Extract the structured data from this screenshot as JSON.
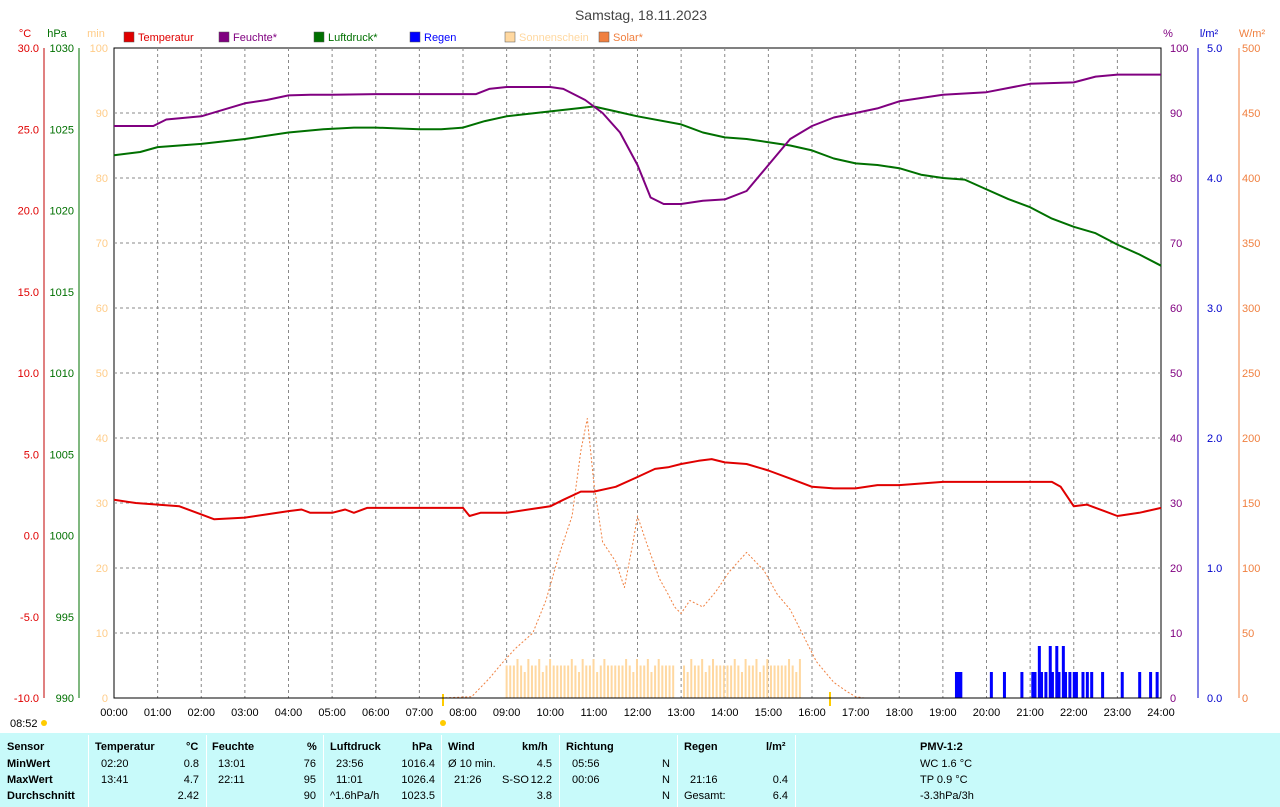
{
  "title": "Samstag, 18.11.2023",
  "axes": {
    "temp": {
      "unit": "°C",
      "color": "#e00000",
      "ticks": [
        "30.0",
        "25.0",
        "20.0",
        "15.0",
        "10.0",
        "5.0",
        "0.0",
        "-5.0",
        "-10.0"
      ],
      "range": [
        -10,
        30
      ]
    },
    "pressure": {
      "unit": "hPa",
      "color": "#007000",
      "ticks": [
        "1030",
        "1025",
        "1020",
        "1015",
        "1010",
        "1005",
        "1000",
        "995",
        "990"
      ],
      "range": [
        990,
        1030
      ]
    },
    "sun_minutes": {
      "unit": "min",
      "color": "#ffd8a0",
      "ticks": [
        "100",
        "90",
        "80",
        "70",
        "60",
        "50",
        "40",
        "30",
        "20",
        "10",
        "0"
      ],
      "range": [
        0,
        100
      ]
    },
    "humidity": {
      "unit": "%",
      "color": "#800080",
      "ticks": [
        "100",
        "90",
        "80",
        "70",
        "60",
        "50",
        "40",
        "30",
        "20",
        "10",
        "0"
      ],
      "range": [
        0,
        100
      ]
    },
    "rain": {
      "unit": "l/m²",
      "color": "#0000cc",
      "ticks": [
        "5.0",
        "4.0",
        "3.0",
        "2.0",
        "1.0",
        "0.0"
      ],
      "range": [
        0,
        5
      ]
    },
    "solar": {
      "unit": "W/m²",
      "color": "#f08040",
      "ticks": [
        "500",
        "450",
        "400",
        "350",
        "300",
        "250",
        "200",
        "150",
        "100",
        "50",
        "0"
      ],
      "range": [
        0,
        500
      ]
    }
  },
  "legend": [
    {
      "label": "Temperatur",
      "color": "#e00000"
    },
    {
      "label": "Feuchte*",
      "color": "#800080"
    },
    {
      "label": "Luftdruck*",
      "color": "#007000"
    },
    {
      "label": "Regen",
      "color": "#0000ff"
    },
    {
      "label": "Sonnenschein",
      "color": "#ffd8a0"
    },
    {
      "label": "Solar*",
      "color": "#f08040"
    }
  ],
  "x_ticks": [
    "00:00",
    "01:00",
    "02:00",
    "03:00",
    "04:00",
    "05:00",
    "06:00",
    "07:00",
    "08:00",
    "09:00",
    "10:00",
    "11:00",
    "12:00",
    "13:00",
    "14:00",
    "15:00",
    "16:00",
    "17:00",
    "18:00",
    "19:00",
    "20:00",
    "21:00",
    "22:00",
    "23:00",
    "24:00"
  ],
  "sunrise": "08:52",
  "chart_data": {
    "type": "line",
    "title": "Samstag, 18.11.2023",
    "x_unit": "hours",
    "xlim": [
      0,
      24
    ],
    "series": [
      {
        "name": "Temperatur",
        "unit": "°C",
        "axis": "temp",
        "points": [
          [
            0,
            2.2
          ],
          [
            0.5,
            2.0
          ],
          [
            1.0,
            1.9
          ],
          [
            1.5,
            1.8
          ],
          [
            2.0,
            1.3
          ],
          [
            2.3,
            1.0
          ],
          [
            3.0,
            1.1
          ],
          [
            3.5,
            1.3
          ],
          [
            4.0,
            1.5
          ],
          [
            4.3,
            1.6
          ],
          [
            4.5,
            1.4
          ],
          [
            5.0,
            1.4
          ],
          [
            5.3,
            1.6
          ],
          [
            5.5,
            1.4
          ],
          [
            5.8,
            1.7
          ],
          [
            7.0,
            1.7
          ],
          [
            8.0,
            1.7
          ],
          [
            8.15,
            1.2
          ],
          [
            8.4,
            1.4
          ],
          [
            9.0,
            1.4
          ],
          [
            9.5,
            1.6
          ],
          [
            10.0,
            1.8
          ],
          [
            10.3,
            2.2
          ],
          [
            10.7,
            2.7
          ],
          [
            11.0,
            2.7
          ],
          [
            11.5,
            3.0
          ],
          [
            12.0,
            3.6
          ],
          [
            12.4,
            4.1
          ],
          [
            12.7,
            4.2
          ],
          [
            13.0,
            4.4
          ],
          [
            13.4,
            4.6
          ],
          [
            13.7,
            4.7
          ],
          [
            14.0,
            4.5
          ],
          [
            14.5,
            4.4
          ],
          [
            15.0,
            4.0
          ],
          [
            15.5,
            3.5
          ],
          [
            16.0,
            3.0
          ],
          [
            16.5,
            2.9
          ],
          [
            17.0,
            2.9
          ],
          [
            17.5,
            3.1
          ],
          [
            18.0,
            3.1
          ],
          [
            19.0,
            3.3
          ],
          [
            20.0,
            3.3
          ],
          [
            21.5,
            3.3
          ],
          [
            21.7,
            3.0
          ],
          [
            22.0,
            1.8
          ],
          [
            22.3,
            1.9
          ],
          [
            22.7,
            1.5
          ],
          [
            23.0,
            1.2
          ],
          [
            23.5,
            1.4
          ],
          [
            24.0,
            1.7
          ]
        ]
      },
      {
        "name": "Feuchte*",
        "unit": "%",
        "axis": "humidity",
        "points": [
          [
            0,
            88
          ],
          [
            0.9,
            88
          ],
          [
            1.2,
            89
          ],
          [
            2.0,
            89.5
          ],
          [
            2.5,
            90.5
          ],
          [
            3.0,
            91.5
          ],
          [
            3.5,
            92
          ],
          [
            4.0,
            92.7
          ],
          [
            4.5,
            92.8
          ],
          [
            5.0,
            92.8
          ],
          [
            6.0,
            92.9
          ],
          [
            7.0,
            92.9
          ],
          [
            8.3,
            92.9
          ],
          [
            8.6,
            93.7
          ],
          [
            9.0,
            94
          ],
          [
            10.0,
            94
          ],
          [
            10.3,
            93.7
          ],
          [
            10.8,
            92
          ],
          [
            11.2,
            90
          ],
          [
            11.6,
            87
          ],
          [
            12.0,
            82
          ],
          [
            12.3,
            77
          ],
          [
            12.6,
            76
          ],
          [
            13.0,
            76
          ],
          [
            13.5,
            76.5
          ],
          [
            14.0,
            76.7
          ],
          [
            14.5,
            78
          ],
          [
            15.0,
            82
          ],
          [
            15.5,
            86
          ],
          [
            16.0,
            88
          ],
          [
            16.5,
            89.3
          ],
          [
            17.0,
            90
          ],
          [
            17.5,
            90.7
          ],
          [
            18.0,
            91.8
          ],
          [
            19.0,
            92.8
          ],
          [
            20.0,
            93.2
          ],
          [
            21.0,
            94.5
          ],
          [
            22.0,
            94.7
          ],
          [
            22.5,
            95.6
          ],
          [
            23.0,
            95.9
          ],
          [
            24.0,
            95.9
          ]
        ]
      },
      {
        "name": "Luftdruck*",
        "unit": "hPa",
        "axis": "pressure",
        "points": [
          [
            0,
            1023.4
          ],
          [
            0.6,
            1023.6
          ],
          [
            1.0,
            1023.9
          ],
          [
            2.0,
            1024.1
          ],
          [
            3.0,
            1024.4
          ],
          [
            4.0,
            1024.8
          ],
          [
            4.8,
            1025.0
          ],
          [
            5.5,
            1025.1
          ],
          [
            6.0,
            1025.1
          ],
          [
            7.0,
            1025.0
          ],
          [
            7.5,
            1025.0
          ],
          [
            8.0,
            1025.1
          ],
          [
            8.5,
            1025.5
          ],
          [
            9.0,
            1025.8
          ],
          [
            10.0,
            1026.1
          ],
          [
            11.0,
            1026.4
          ],
          [
            11.5,
            1026.1
          ],
          [
            12.0,
            1025.8
          ],
          [
            13.0,
            1025.3
          ],
          [
            13.5,
            1024.8
          ],
          [
            14.0,
            1024.5
          ],
          [
            14.5,
            1024.4
          ],
          [
            15.0,
            1024.2
          ],
          [
            15.5,
            1024.0
          ],
          [
            16.0,
            1023.7
          ],
          [
            16.5,
            1023.2
          ],
          [
            17.0,
            1022.9
          ],
          [
            17.5,
            1022.8
          ],
          [
            18.0,
            1022.6
          ],
          [
            18.5,
            1022.2
          ],
          [
            19.0,
            1022.0
          ],
          [
            19.5,
            1021.9
          ],
          [
            20.0,
            1021.3
          ],
          [
            20.5,
            1020.7
          ],
          [
            21.0,
            1020.2
          ],
          [
            21.5,
            1019.5
          ],
          [
            22.0,
            1019.0
          ],
          [
            22.5,
            1018.6
          ],
          [
            23.0,
            1017.9
          ],
          [
            23.5,
            1017.3
          ],
          [
            24.0,
            1016.6
          ]
        ]
      },
      {
        "name": "Solar*",
        "unit": "W/m²",
        "axis": "solar",
        "points": [
          [
            7.5,
            0
          ],
          [
            8.2,
            1
          ],
          [
            8.6,
            15
          ],
          [
            8.9,
            27
          ],
          [
            9.2,
            38
          ],
          [
            9.6,
            50
          ],
          [
            9.9,
            75
          ],
          [
            10.2,
            110
          ],
          [
            10.5,
            140
          ],
          [
            10.7,
            190
          ],
          [
            10.85,
            215
          ],
          [
            11.0,
            165
          ],
          [
            11.2,
            120
          ],
          [
            11.5,
            105
          ],
          [
            11.7,
            85
          ],
          [
            11.9,
            120
          ],
          [
            12.0,
            140
          ],
          [
            12.2,
            120
          ],
          [
            12.5,
            92
          ],
          [
            12.7,
            80
          ],
          [
            12.85,
            70
          ],
          [
            13.0,
            65
          ],
          [
            13.2,
            75
          ],
          [
            13.5,
            70
          ],
          [
            13.8,
            82
          ],
          [
            14.1,
            97
          ],
          [
            14.5,
            112
          ],
          [
            14.9,
            98
          ],
          [
            15.2,
            80
          ],
          [
            15.5,
            68
          ],
          [
            15.8,
            48
          ],
          [
            16.1,
            28
          ],
          [
            16.5,
            12
          ],
          [
            16.8,
            5
          ],
          [
            17.0,
            1
          ],
          [
            17.2,
            0
          ]
        ]
      },
      {
        "name": "Sonnenschein",
        "unit": "min",
        "axis": "sun_minutes",
        "bars": {
          "start": 9.0,
          "end": 15.8,
          "gap": [
            12.85,
            13.0
          ],
          "typical": 5
        }
      },
      {
        "name": "Regen",
        "unit": "l/m²",
        "axis": "rain",
        "bars": [
          [
            19.3,
            0.2
          ],
          [
            19.35,
            0.2
          ],
          [
            19.4,
            0.2
          ],
          [
            20.1,
            0.2
          ],
          [
            20.4,
            0.2
          ],
          [
            20.8,
            0.2
          ],
          [
            21.05,
            0.2
          ],
          [
            21.1,
            0.2
          ],
          [
            21.2,
            0.4
          ],
          [
            21.25,
            0.2
          ],
          [
            21.35,
            0.2
          ],
          [
            21.45,
            0.4
          ],
          [
            21.5,
            0.2
          ],
          [
            21.6,
            0.4
          ],
          [
            21.65,
            0.2
          ],
          [
            21.75,
            0.4
          ],
          [
            21.8,
            0.2
          ],
          [
            21.9,
            0.2
          ],
          [
            22.0,
            0.2
          ],
          [
            22.05,
            0.2
          ],
          [
            22.2,
            0.2
          ],
          [
            22.3,
            0.2
          ],
          [
            22.4,
            0.2
          ],
          [
            22.65,
            0.2
          ],
          [
            23.1,
            0.2
          ],
          [
            23.5,
            0.2
          ],
          [
            23.75,
            0.2
          ],
          [
            23.9,
            0.2
          ]
        ]
      }
    ]
  },
  "table": {
    "sensor": {
      "header": "Sensor",
      "rows": [
        "MinWert",
        "MaxWert",
        "Durchschnitt"
      ]
    },
    "temperature": {
      "header": "Temperatur",
      "unit": "°C",
      "min_time": "02:20",
      "min": "0.8",
      "max_time": "13:41",
      "max": "4.7",
      "avg": "2.42"
    },
    "humidity": {
      "header": "Feuchte",
      "unit": "%",
      "min_time": "13:01",
      "min": "76",
      "max_time": "22:11",
      "max": "95",
      "avg": "90"
    },
    "pressure": {
      "header": "Luftdruck",
      "unit": "hPa",
      "min_time": "23:56",
      "min": "1016.4",
      "max_time": "11:01",
      "max": "1026.4",
      "trend": "^1.6hPa/h",
      "avg": "1023.5"
    },
    "wind": {
      "header": "Wind",
      "unit": "km/h",
      "avg_label": "Ø 10 min.",
      "avg": "4.5",
      "max_time": "21:26",
      "max_dir": "S-SO",
      "max": "12.2",
      "mean": "3.8"
    },
    "direction": {
      "header": "Richtung",
      "t1": "05:56",
      "d1": "N",
      "t2": "00:06",
      "d2": "N",
      "d3": "N"
    },
    "rain": {
      "header": "Regen",
      "unit": "l/m²",
      "max_time": "21:16",
      "max": "0.4",
      "total_label": "Gesamt:",
      "total": "6.4"
    },
    "pmv": {
      "header": "PMV-1:2",
      "wc": "WC 1.6 °C",
      "tp": "TP 0.9 °C",
      "trend": "-3.3hPa/3h"
    }
  }
}
